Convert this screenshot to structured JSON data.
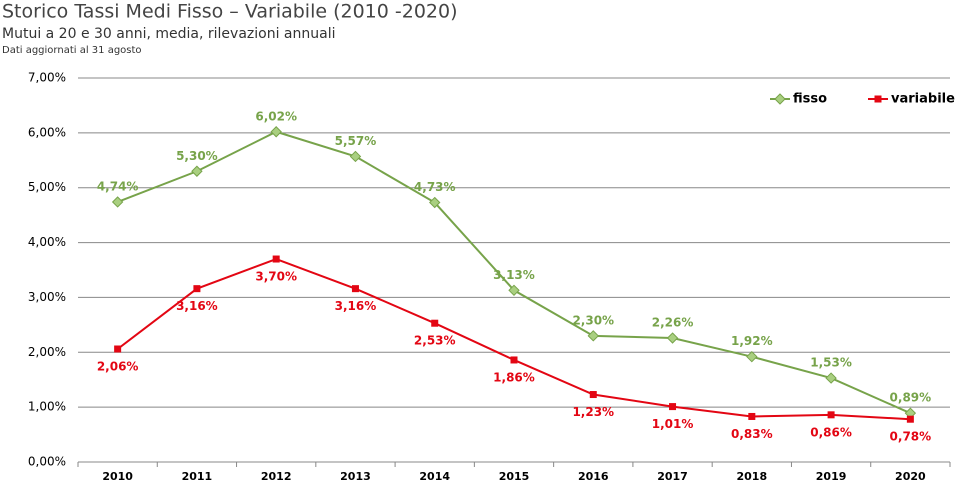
{
  "chart_data": {
    "type": "line",
    "title": "Storico Tassi Medi Fisso – Variabile (2010 -2020)",
    "subtitle": "Mutui a 20 e 30 anni, media, rilevazioni annuali",
    "note": "Dati aggiornati al 31 agosto",
    "categories": [
      "2010",
      "2011",
      "2012",
      "2013",
      "2014",
      "2015",
      "2016",
      "2017",
      "2018",
      "2019",
      "2020"
    ],
    "series": [
      {
        "name": "fisso",
        "color": "#77a34a",
        "marker": "diamond",
        "values": [
          4.74,
          5.3,
          6.02,
          5.57,
          4.73,
          3.13,
          2.3,
          2.26,
          1.92,
          1.53,
          0.89
        ],
        "value_labels": [
          "4,74%",
          "5,30%",
          "6,02%",
          "5,57%",
          "4,73%",
          "3,13%",
          "2,30%",
          "2,26%",
          "1,92%",
          "1,53%",
          "0,89%"
        ]
      },
      {
        "name": "variabile",
        "color": "#e30613",
        "marker": "square",
        "values": [
          2.06,
          3.16,
          3.7,
          3.16,
          2.53,
          1.86,
          1.23,
          1.01,
          0.83,
          0.86,
          0.78
        ],
        "value_labels": [
          "2,06%",
          "3,16%",
          "3,70%",
          "3,16%",
          "2,53%",
          "1,86%",
          "1,23%",
          "1,01%",
          "0,83%",
          "0,86%",
          "0,78%"
        ]
      }
    ],
    "ylim": [
      0,
      7
    ],
    "yticks": [
      {
        "value": 0,
        "label": "0,00%"
      },
      {
        "value": 1,
        "label": "1,00%"
      },
      {
        "value": 2,
        "label": "2,00%"
      },
      {
        "value": 3,
        "label": "3,00%"
      },
      {
        "value": 4,
        "label": "4,00%"
      },
      {
        "value": 5,
        "label": "5,00%"
      },
      {
        "value": 6,
        "label": "6,00%"
      },
      {
        "value": 7,
        "label": "7,00%"
      }
    ],
    "grid": true,
    "legend": "top-right"
  }
}
